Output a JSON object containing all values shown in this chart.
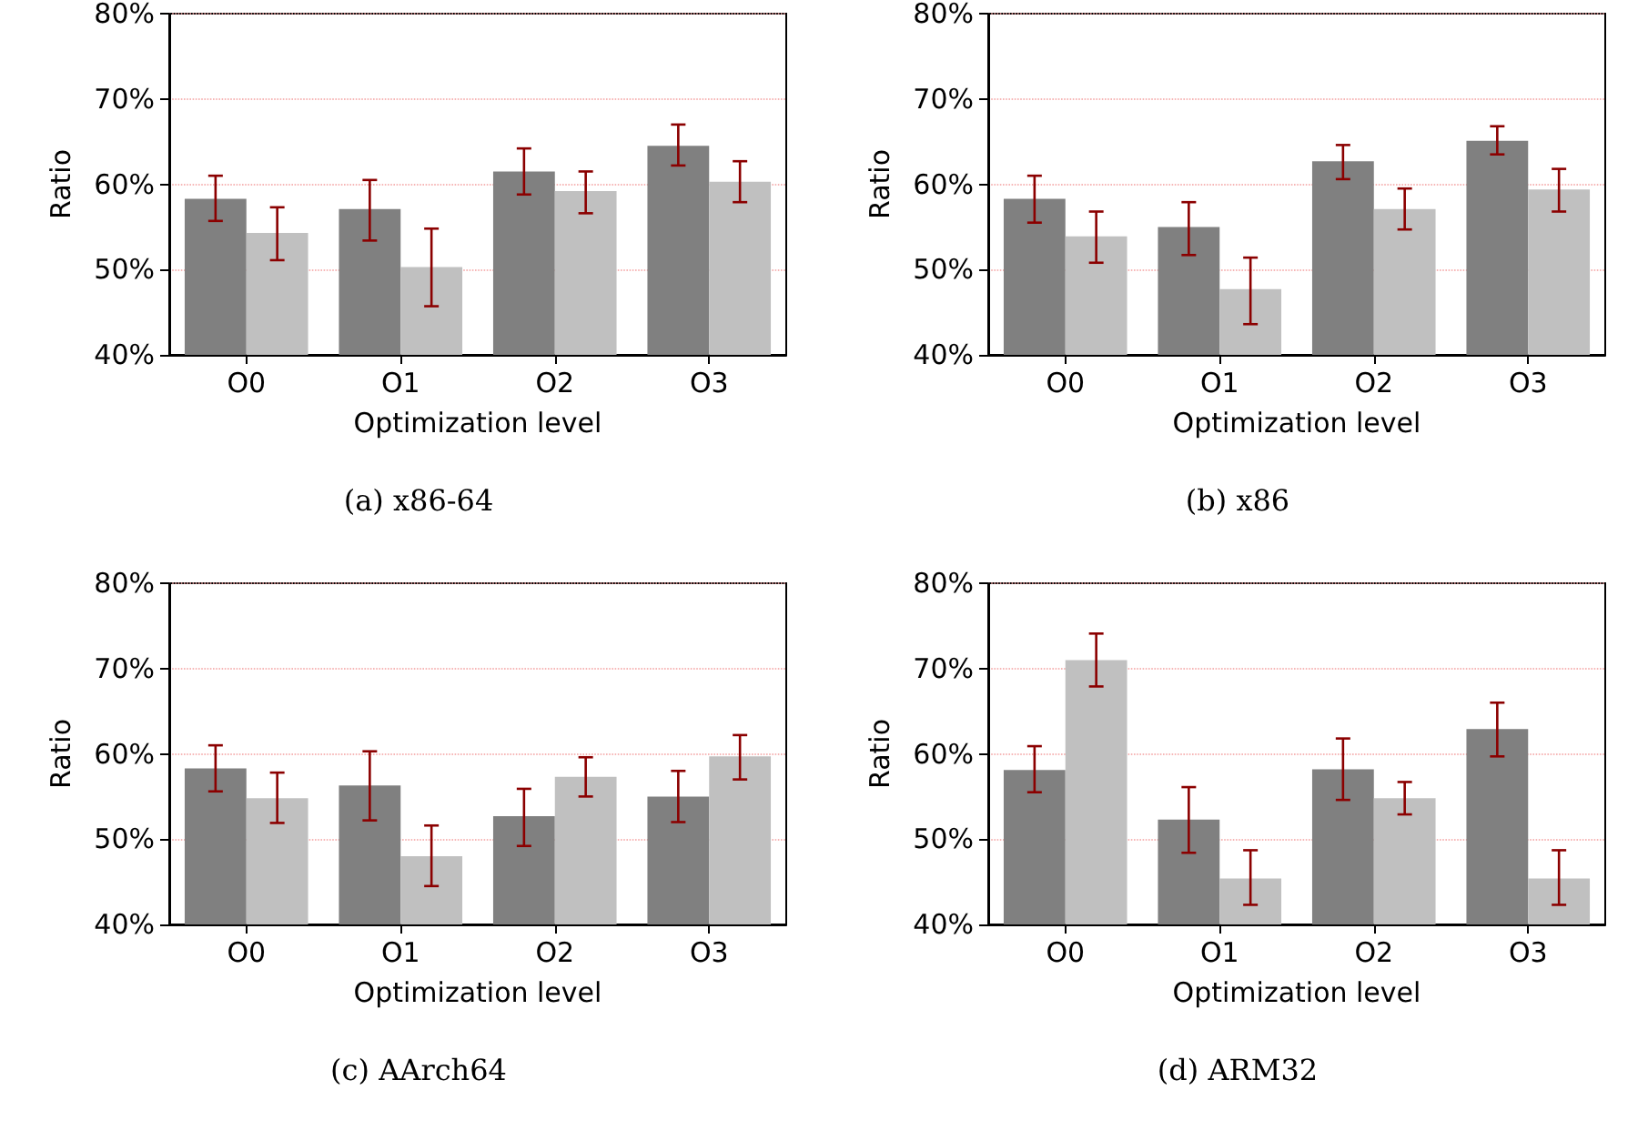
{
  "chart_data": [
    {
      "type": "bar",
      "title": "(a) x86-64",
      "xlabel": "Optimization level",
      "ylabel": "Ratio",
      "categories": [
        "O0",
        "O1",
        "O2",
        "O3"
      ],
      "ylim": [
        40,
        80
      ],
      "yticks": [
        {
          "value": 40,
          "label": "40%"
        },
        {
          "value": 50,
          "label": "50%"
        },
        {
          "value": 60,
          "label": "60%"
        },
        {
          "value": 70,
          "label": "70%"
        },
        {
          "value": 80,
          "label": "80%"
        }
      ],
      "grid": "y",
      "series": [
        {
          "color": "#808080",
          "values": [
            58.3,
            57.1,
            61.5,
            64.5
          ],
          "errors": [
            [
              55.7,
              61
            ],
            [
              53.4,
              60.5
            ],
            [
              58.8,
              64.2
            ],
            [
              62.2,
              67
            ]
          ]
        },
        {
          "color": "#c0c0c0",
          "values": [
            54.3,
            50.3,
            59.2,
            60.3
          ],
          "errors": [
            [
              51.1,
              57.3
            ],
            [
              45.7,
              54.8
            ],
            [
              56.6,
              61.5
            ],
            [
              57.9,
              62.7
            ]
          ]
        }
      ]
    },
    {
      "type": "bar",
      "title": "(b) x86",
      "xlabel": "Optimization level",
      "ylabel": "Ratio",
      "categories": [
        "O0",
        "O1",
        "O2",
        "O3"
      ],
      "ylim": [
        40,
        80
      ],
      "yticks": [
        {
          "value": 40,
          "label": "40%"
        },
        {
          "value": 50,
          "label": "50%"
        },
        {
          "value": 60,
          "label": "60%"
        },
        {
          "value": 70,
          "label": "70%"
        },
        {
          "value": 80,
          "label": "80%"
        }
      ],
      "grid": "y",
      "series": [
        {
          "color": "#808080",
          "values": [
            58.3,
            55,
            62.7,
            65.1
          ],
          "errors": [
            [
              55.5,
              61
            ],
            [
              51.7,
              57.9
            ],
            [
              60.6,
              64.6
            ],
            [
              63.5,
              66.8
            ]
          ]
        },
        {
          "color": "#c0c0c0",
          "values": [
            53.9,
            47.7,
            57.1,
            59.4
          ],
          "errors": [
            [
              50.8,
              56.8
            ],
            [
              43.6,
              51.4
            ],
            [
              54.7,
              59.5
            ],
            [
              56.8,
              61.8
            ]
          ]
        }
      ]
    },
    {
      "type": "bar",
      "title": "(c) AArch64",
      "xlabel": "Optimization level",
      "ylabel": "Ratio",
      "categories": [
        "O0",
        "O1",
        "O2",
        "O3"
      ],
      "ylim": [
        40,
        80
      ],
      "yticks": [
        {
          "value": 40,
          "label": "40%"
        },
        {
          "value": 50,
          "label": "50%"
        },
        {
          "value": 60,
          "label": "60%"
        },
        {
          "value": 70,
          "label": "70%"
        },
        {
          "value": 80,
          "label": "80%"
        }
      ],
      "grid": "y",
      "series": [
        {
          "color": "#808080",
          "values": [
            58.3,
            56.3,
            52.7,
            55
          ],
          "errors": [
            [
              55.6,
              61
            ],
            [
              52.2,
              60.3
            ],
            [
              49.2,
              55.9
            ],
            [
              52,
              58
            ]
          ]
        },
        {
          "color": "#c0c0c0",
          "values": [
            54.8,
            48,
            57.3,
            59.7
          ],
          "errors": [
            [
              51.9,
              57.8
            ],
            [
              44.5,
              51.6
            ],
            [
              55,
              59.6
            ],
            [
              57,
              62.2
            ]
          ]
        }
      ]
    },
    {
      "type": "bar",
      "title": "(d) ARM32",
      "xlabel": "Optimization level",
      "ylabel": "Ratio",
      "categories": [
        "O0",
        "O1",
        "O2",
        "O3"
      ],
      "ylim": [
        40,
        80
      ],
      "yticks": [
        {
          "value": 40,
          "label": "40%"
        },
        {
          "value": 50,
          "label": "50%"
        },
        {
          "value": 60,
          "label": "60%"
        },
        {
          "value": 70,
          "label": "70%"
        },
        {
          "value": 80,
          "label": "80%"
        }
      ],
      "grid": "y",
      "series": [
        {
          "color": "#808080",
          "values": [
            58.1,
            52.3,
            58.2,
            62.9
          ],
          "errors": [
            [
              55.5,
              60.9
            ],
            [
              48.4,
              56.1
            ],
            [
              54.6,
              61.8
            ],
            [
              59.7,
              66
            ]
          ]
        },
        {
          "color": "#c0c0c0",
          "values": [
            71,
            45.4,
            54.8,
            45.4
          ],
          "errors": [
            [
              67.9,
              74.1
            ],
            [
              42.3,
              48.7
            ],
            [
              52.9,
              56.7
            ],
            [
              42.3,
              48.7
            ]
          ]
        }
      ]
    }
  ]
}
